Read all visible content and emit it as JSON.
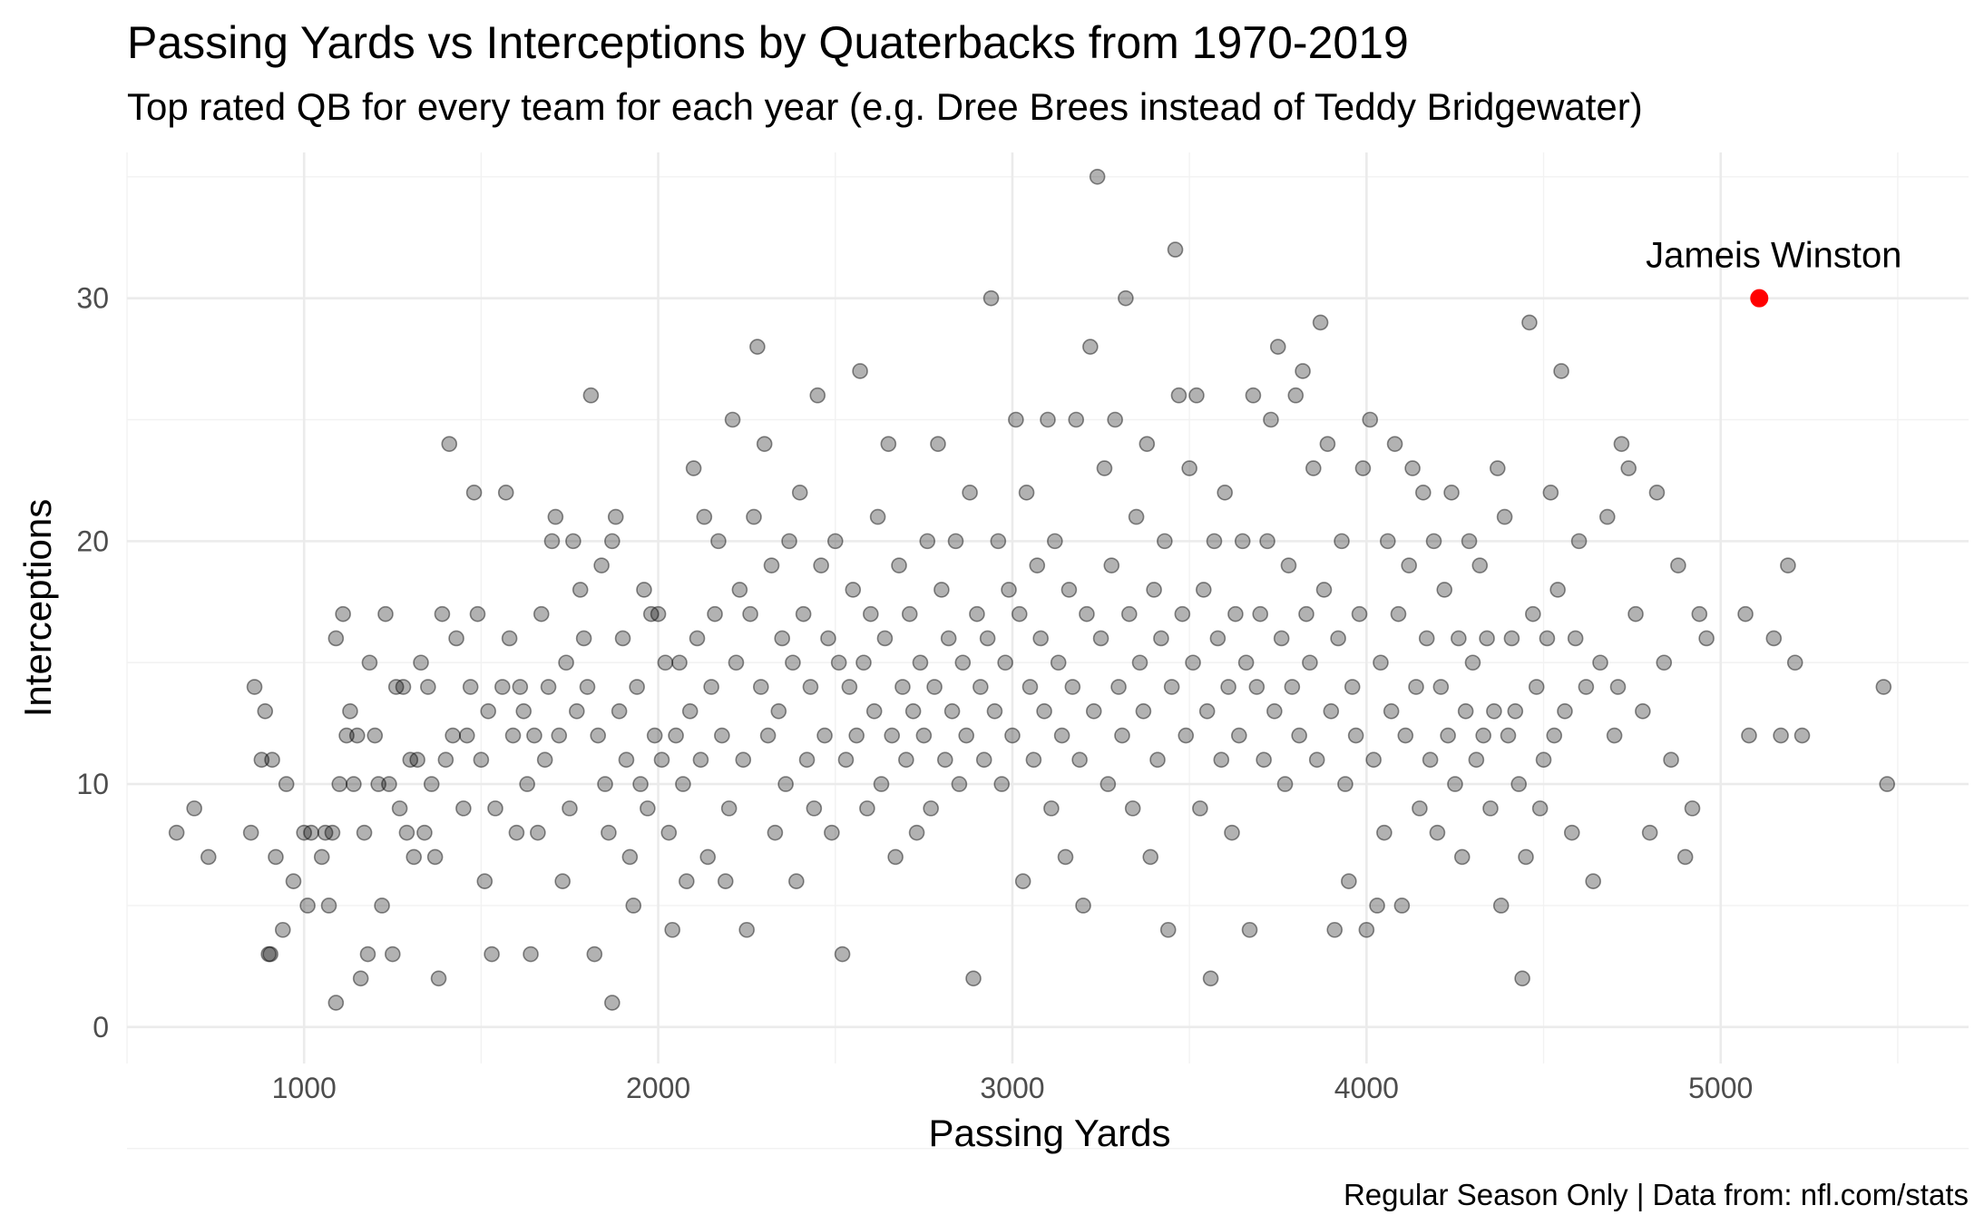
{
  "chart_data": {
    "type": "scatter",
    "title": "Passing Yards vs Interceptions by Quaterbacks from 1970-2019",
    "subtitle": "Top rated QB for every team for each year (e.g. Dree Brees instead of Teddy Bridgewater)",
    "caption": "Regular Season Only | Data from: nfl.com/stats",
    "xlabel": "Passing Yards",
    "ylabel": "Interceptions",
    "xlim": [
      500,
      5700
    ],
    "ylim": [
      -1.5,
      36
    ],
    "x_ticks": [
      1000,
      2000,
      3000,
      4000,
      5000
    ],
    "y_ticks": [
      0,
      10,
      20,
      30
    ],
    "grid": true,
    "point_color": "#000000",
    "point_opacity": 0.3,
    "highlight_color": "#ff0000",
    "highlight": {
      "label": "Jameis Winston",
      "x": 5109,
      "y": 30
    },
    "points": [
      [
        640,
        8
      ],
      [
        690,
        9
      ],
      [
        730,
        7
      ],
      [
        850,
        8
      ],
      [
        860,
        14
      ],
      [
        880,
        11
      ],
      [
        890,
        13
      ],
      [
        900,
        3
      ],
      [
        905,
        3
      ],
      [
        910,
        11
      ],
      [
        920,
        7
      ],
      [
        940,
        4
      ],
      [
        950,
        10
      ],
      [
        970,
        6
      ],
      [
        1000,
        8
      ],
      [
        1010,
        5
      ],
      [
        1020,
        8
      ],
      [
        1050,
        7
      ],
      [
        1060,
        8
      ],
      [
        1070,
        5
      ],
      [
        1080,
        8
      ],
      [
        1090,
        1
      ],
      [
        1090,
        16
      ],
      [
        1100,
        10
      ],
      [
        1110,
        17
      ],
      [
        1120,
        12
      ],
      [
        1130,
        13
      ],
      [
        1140,
        10
      ],
      [
        1150,
        12
      ],
      [
        1160,
        2
      ],
      [
        1170,
        8
      ],
      [
        1180,
        3
      ],
      [
        1185,
        15
      ],
      [
        1200,
        12
      ],
      [
        1210,
        10
      ],
      [
        1220,
        5
      ],
      [
        1230,
        17
      ],
      [
        1240,
        10
      ],
      [
        1250,
        3
      ],
      [
        1260,
        14
      ],
      [
        1270,
        9
      ],
      [
        1280,
        14
      ],
      [
        1290,
        8
      ],
      [
        1300,
        11
      ],
      [
        1310,
        7
      ],
      [
        1320,
        11
      ],
      [
        1330,
        15
      ],
      [
        1340,
        8
      ],
      [
        1350,
        14
      ],
      [
        1360,
        10
      ],
      [
        1370,
        7
      ],
      [
        1380,
        2
      ],
      [
        1390,
        17
      ],
      [
        1400,
        11
      ],
      [
        1410,
        24
      ],
      [
        1420,
        12
      ],
      [
        1430,
        16
      ],
      [
        1450,
        9
      ],
      [
        1460,
        12
      ],
      [
        1470,
        14
      ],
      [
        1480,
        22
      ],
      [
        1490,
        17
      ],
      [
        1500,
        11
      ],
      [
        1510,
        6
      ],
      [
        1520,
        13
      ],
      [
        1530,
        3
      ],
      [
        1540,
        9
      ],
      [
        1560,
        14
      ],
      [
        1570,
        22
      ],
      [
        1580,
        16
      ],
      [
        1590,
        12
      ],
      [
        1600,
        8
      ],
      [
        1610,
        14
      ],
      [
        1620,
        13
      ],
      [
        1630,
        10
      ],
      [
        1640,
        3
      ],
      [
        1650,
        12
      ],
      [
        1660,
        8
      ],
      [
        1670,
        17
      ],
      [
        1680,
        11
      ],
      [
        1690,
        14
      ],
      [
        1700,
        20
      ],
      [
        1710,
        21
      ],
      [
        1720,
        12
      ],
      [
        1730,
        6
      ],
      [
        1740,
        15
      ],
      [
        1750,
        9
      ],
      [
        1760,
        20
      ],
      [
        1770,
        13
      ],
      [
        1780,
        18
      ],
      [
        1790,
        16
      ],
      [
        1800,
        14
      ],
      [
        1810,
        26
      ],
      [
        1820,
        3
      ],
      [
        1830,
        12
      ],
      [
        1840,
        19
      ],
      [
        1850,
        10
      ],
      [
        1860,
        8
      ],
      [
        1870,
        1
      ],
      [
        1870,
        20
      ],
      [
        1880,
        21
      ],
      [
        1890,
        13
      ],
      [
        1900,
        16
      ],
      [
        1910,
        11
      ],
      [
        1920,
        7
      ],
      [
        1930,
        5
      ],
      [
        1940,
        14
      ],
      [
        1950,
        10
      ],
      [
        1960,
        18
      ],
      [
        1970,
        9
      ],
      [
        1980,
        17
      ],
      [
        1990,
        12
      ],
      [
        2000,
        17
      ],
      [
        2010,
        11
      ],
      [
        2020,
        15
      ],
      [
        2030,
        8
      ],
      [
        2040,
        4
      ],
      [
        2050,
        12
      ],
      [
        2060,
        15
      ],
      [
        2070,
        10
      ],
      [
        2080,
        6
      ],
      [
        2090,
        13
      ],
      [
        2100,
        23
      ],
      [
        2110,
        16
      ],
      [
        2120,
        11
      ],
      [
        2130,
        21
      ],
      [
        2140,
        7
      ],
      [
        2150,
        14
      ],
      [
        2160,
        17
      ],
      [
        2170,
        20
      ],
      [
        2180,
        12
      ],
      [
        2190,
        6
      ],
      [
        2200,
        9
      ],
      [
        2210,
        25
      ],
      [
        2220,
        15
      ],
      [
        2230,
        18
      ],
      [
        2240,
        11
      ],
      [
        2250,
        4
      ],
      [
        2260,
        17
      ],
      [
        2270,
        21
      ],
      [
        2280,
        28
      ],
      [
        2290,
        14
      ],
      [
        2300,
        24
      ],
      [
        2310,
        12
      ],
      [
        2320,
        19
      ],
      [
        2330,
        8
      ],
      [
        2340,
        13
      ],
      [
        2350,
        16
      ],
      [
        2360,
        10
      ],
      [
        2370,
        20
      ],
      [
        2380,
        15
      ],
      [
        2390,
        6
      ],
      [
        2400,
        22
      ],
      [
        2410,
        17
      ],
      [
        2420,
        11
      ],
      [
        2430,
        14
      ],
      [
        2440,
        9
      ],
      [
        2450,
        26
      ],
      [
        2460,
        19
      ],
      [
        2470,
        12
      ],
      [
        2480,
        16
      ],
      [
        2490,
        8
      ],
      [
        2500,
        20
      ],
      [
        2510,
        15
      ],
      [
        2520,
        3
      ],
      [
        2530,
        11
      ],
      [
        2540,
        14
      ],
      [
        2550,
        18
      ],
      [
        2560,
        12
      ],
      [
        2570,
        27
      ],
      [
        2580,
        15
      ],
      [
        2590,
        9
      ],
      [
        2600,
        17
      ],
      [
        2610,
        13
      ],
      [
        2620,
        21
      ],
      [
        2630,
        10
      ],
      [
        2640,
        16
      ],
      [
        2650,
        24
      ],
      [
        2660,
        12
      ],
      [
        2670,
        7
      ],
      [
        2680,
        19
      ],
      [
        2690,
        14
      ],
      [
        2700,
        11
      ],
      [
        2710,
        17
      ],
      [
        2720,
        13
      ],
      [
        2730,
        8
      ],
      [
        2740,
        15
      ],
      [
        2750,
        12
      ],
      [
        2760,
        20
      ],
      [
        2770,
        9
      ],
      [
        2780,
        14
      ],
      [
        2790,
        24
      ],
      [
        2800,
        18
      ],
      [
        2810,
        11
      ],
      [
        2820,
        16
      ],
      [
        2830,
        13
      ],
      [
        2840,
        20
      ],
      [
        2850,
        10
      ],
      [
        2860,
        15
      ],
      [
        2870,
        12
      ],
      [
        2880,
        22
      ],
      [
        2890,
        2
      ],
      [
        2900,
        17
      ],
      [
        2910,
        14
      ],
      [
        2920,
        11
      ],
      [
        2930,
        16
      ],
      [
        2940,
        30
      ],
      [
        2950,
        13
      ],
      [
        2960,
        20
      ],
      [
        2970,
        10
      ],
      [
        2980,
        15
      ],
      [
        2990,
        18
      ],
      [
        3000,
        12
      ],
      [
        3010,
        25
      ],
      [
        3020,
        17
      ],
      [
        3030,
        6
      ],
      [
        3040,
        22
      ],
      [
        3050,
        14
      ],
      [
        3060,
        11
      ],
      [
        3070,
        19
      ],
      [
        3080,
        16
      ],
      [
        3090,
        13
      ],
      [
        3100,
        25
      ],
      [
        3110,
        9
      ],
      [
        3120,
        20
      ],
      [
        3130,
        15
      ],
      [
        3140,
        12
      ],
      [
        3150,
        7
      ],
      [
        3160,
        18
      ],
      [
        3170,
        14
      ],
      [
        3180,
        25
      ],
      [
        3190,
        11
      ],
      [
        3200,
        5
      ],
      [
        3210,
        17
      ],
      [
        3220,
        28
      ],
      [
        3230,
        13
      ],
      [
        3240,
        35
      ],
      [
        3250,
        16
      ],
      [
        3260,
        23
      ],
      [
        3270,
        10
      ],
      [
        3280,
        19
      ],
      [
        3290,
        25
      ],
      [
        3300,
        14
      ],
      [
        3310,
        12
      ],
      [
        3320,
        30
      ],
      [
        3330,
        17
      ],
      [
        3340,
        9
      ],
      [
        3350,
        21
      ],
      [
        3360,
        15
      ],
      [
        3370,
        13
      ],
      [
        3380,
        24
      ],
      [
        3390,
        7
      ],
      [
        3400,
        18
      ],
      [
        3410,
        11
      ],
      [
        3420,
        16
      ],
      [
        3430,
        20
      ],
      [
        3440,
        4
      ],
      [
        3450,
        14
      ],
      [
        3460,
        32
      ],
      [
        3470,
        26
      ],
      [
        3480,
        17
      ],
      [
        3490,
        12
      ],
      [
        3500,
        23
      ],
      [
        3510,
        15
      ],
      [
        3520,
        26
      ],
      [
        3530,
        9
      ],
      [
        3540,
        18
      ],
      [
        3550,
        13
      ],
      [
        3560,
        2
      ],
      [
        3570,
        20
      ],
      [
        3580,
        16
      ],
      [
        3590,
        11
      ],
      [
        3600,
        22
      ],
      [
        3610,
        14
      ],
      [
        3620,
        8
      ],
      [
        3630,
        17
      ],
      [
        3640,
        12
      ],
      [
        3650,
        20
      ],
      [
        3660,
        15
      ],
      [
        3670,
        4
      ],
      [
        3680,
        26
      ],
      [
        3690,
        14
      ],
      [
        3700,
        17
      ],
      [
        3710,
        11
      ],
      [
        3720,
        20
      ],
      [
        3730,
        25
      ],
      [
        3740,
        13
      ],
      [
        3750,
        28
      ],
      [
        3760,
        16
      ],
      [
        3770,
        10
      ],
      [
        3780,
        19
      ],
      [
        3790,
        14
      ],
      [
        3800,
        26
      ],
      [
        3810,
        12
      ],
      [
        3820,
        27
      ],
      [
        3830,
        17
      ],
      [
        3840,
        15
      ],
      [
        3850,
        23
      ],
      [
        3860,
        11
      ],
      [
        3870,
        29
      ],
      [
        3880,
        18
      ],
      [
        3890,
        24
      ],
      [
        3900,
        13
      ],
      [
        3910,
        4
      ],
      [
        3920,
        16
      ],
      [
        3930,
        20
      ],
      [
        3940,
        10
      ],
      [
        3950,
        6
      ],
      [
        3960,
        14
      ],
      [
        3970,
        12
      ],
      [
        3980,
        17
      ],
      [
        3990,
        23
      ],
      [
        4000,
        4
      ],
      [
        4010,
        25
      ],
      [
        4020,
        11
      ],
      [
        4030,
        5
      ],
      [
        4040,
        15
      ],
      [
        4050,
        8
      ],
      [
        4060,
        20
      ],
      [
        4070,
        13
      ],
      [
        4080,
        24
      ],
      [
        4090,
        17
      ],
      [
        4100,
        5
      ],
      [
        4110,
        12
      ],
      [
        4120,
        19
      ],
      [
        4130,
        23
      ],
      [
        4140,
        14
      ],
      [
        4150,
        9
      ],
      [
        4160,
        22
      ],
      [
        4170,
        16
      ],
      [
        4180,
        11
      ],
      [
        4190,
        20
      ],
      [
        4200,
        8
      ],
      [
        4210,
        14
      ],
      [
        4220,
        18
      ],
      [
        4230,
        12
      ],
      [
        4240,
        22
      ],
      [
        4250,
        10
      ],
      [
        4260,
        16
      ],
      [
        4270,
        7
      ],
      [
        4280,
        13
      ],
      [
        4290,
        20
      ],
      [
        4300,
        15
      ],
      [
        4310,
        11
      ],
      [
        4320,
        19
      ],
      [
        4330,
        12
      ],
      [
        4340,
        16
      ],
      [
        4350,
        9
      ],
      [
        4360,
        13
      ],
      [
        4370,
        23
      ],
      [
        4380,
        5
      ],
      [
        4390,
        21
      ],
      [
        4400,
        12
      ],
      [
        4410,
        16
      ],
      [
        4420,
        13
      ],
      [
        4430,
        10
      ],
      [
        4440,
        2
      ],
      [
        4450,
        7
      ],
      [
        4460,
        29
      ],
      [
        4470,
        17
      ],
      [
        4480,
        14
      ],
      [
        4490,
        9
      ],
      [
        4500,
        11
      ],
      [
        4510,
        16
      ],
      [
        4520,
        22
      ],
      [
        4530,
        12
      ],
      [
        4540,
        18
      ],
      [
        4550,
        27
      ],
      [
        4560,
        13
      ],
      [
        4580,
        8
      ],
      [
        4590,
        16
      ],
      [
        4600,
        20
      ],
      [
        4620,
        14
      ],
      [
        4640,
        6
      ],
      [
        4660,
        15
      ],
      [
        4680,
        21
      ],
      [
        4700,
        12
      ],
      [
        4710,
        14
      ],
      [
        4720,
        24
      ],
      [
        4740,
        23
      ],
      [
        4760,
        17
      ],
      [
        4780,
        13
      ],
      [
        4800,
        8
      ],
      [
        4820,
        22
      ],
      [
        4840,
        15
      ],
      [
        4860,
        11
      ],
      [
        4880,
        19
      ],
      [
        4900,
        7
      ],
      [
        4920,
        9
      ],
      [
        4940,
        17
      ],
      [
        4960,
        16
      ],
      [
        5070,
        17
      ],
      [
        5080,
        12
      ],
      [
        5150,
        16
      ],
      [
        5170,
        12
      ],
      [
        5190,
        19
      ],
      [
        5210,
        15
      ],
      [
        5230,
        12
      ],
      [
        5460,
        14
      ],
      [
        5470,
        10
      ]
    ]
  }
}
